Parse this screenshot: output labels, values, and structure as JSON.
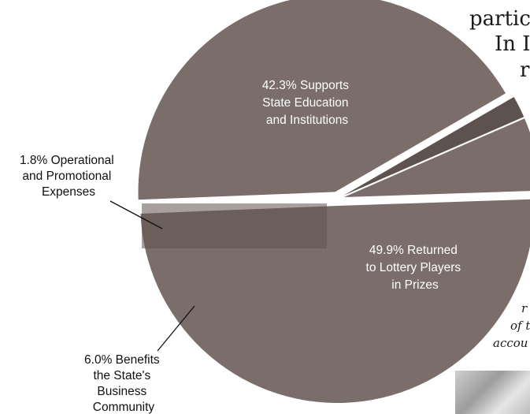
{
  "chart_data": {
    "type": "pie",
    "slices": [
      {
        "label": "42.3% Supports State Education and Institutions",
        "value": 42.3
      },
      {
        "label": "1.8% Operational and Promotional Expenses",
        "value": 1.8
      },
      {
        "label": "6.0% Benefits the State's Business Community",
        "value": 6.0
      },
      {
        "label": "49.9% Returned to Lottery Players in Prizes",
        "value": 49.9
      }
    ],
    "label_lines": {
      "education": [
        "42.3% Supports",
        "State Education",
        "and Institutions"
      ],
      "operational": [
        "1.8% Operational",
        "and Promotional",
        "Expenses"
      ],
      "business": [
        "6.0% Benefits",
        "the State's",
        "Business",
        "Community"
      ],
      "prizes": [
        "49.9% Returned",
        "to Lottery Players",
        "in Prizes"
      ]
    },
    "colors": {
      "education": "#7a6d6a",
      "operational": "#5e524f",
      "business": "#7a6d6a",
      "prizes": "#7a6d6a"
    }
  },
  "background_text": {
    "line1": "partic",
    "line2": "In I",
    "line3": "r",
    "caption1": "r",
    "caption2": "of t",
    "caption3": "accou"
  }
}
